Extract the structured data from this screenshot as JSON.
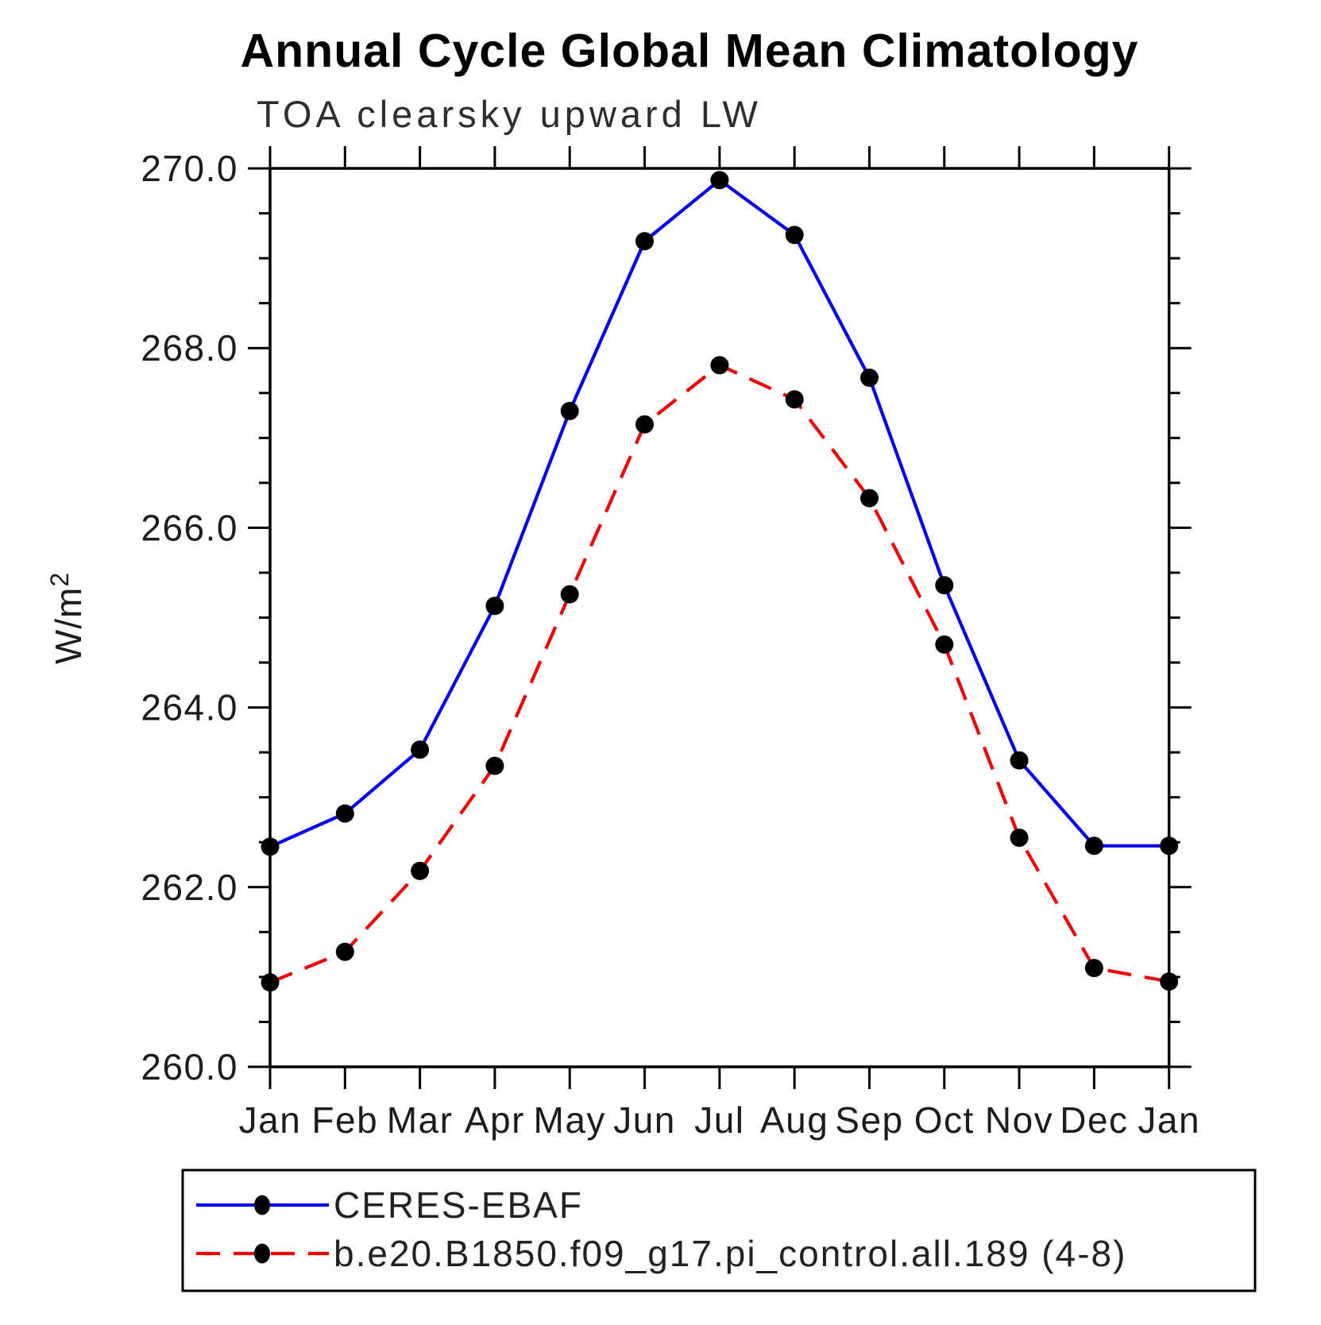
{
  "page": {
    "background": "#ffffff"
  },
  "chart_data": {
    "type": "line",
    "title": "Annual Cycle Global Mean Climatology",
    "subtitle": "TOA clearsky upward LW",
    "ylabel": "W/m²",
    "ylabel_base": "W/m",
    "ylabel_exp": "2",
    "categories": [
      "Jan",
      "Feb",
      "Mar",
      "Apr",
      "May",
      "Jun",
      "Jul",
      "Aug",
      "Sep",
      "Oct",
      "Nov",
      "Dec",
      "Jan"
    ],
    "ylim": [
      260.0,
      270.0
    ],
    "ytick_major_step": 2.0,
    "ytick_minor_step": 0.5,
    "ytick_labels": [
      "260.0",
      "262.0",
      "264.0",
      "266.0",
      "268.0",
      "270.0"
    ],
    "grid": false,
    "legend_position": "bottom-left-box",
    "axis_color": "#000000",
    "series": [
      {
        "name": "CERES-EBAF",
        "line_color": "#0000f2",
        "line_style": "solid",
        "marker": "filled-circle",
        "marker_color": "#000000",
        "values": [
          262.45,
          262.82,
          263.53,
          265.13,
          267.3,
          269.19,
          269.87,
          269.26,
          267.67,
          265.36,
          263.41,
          262.46,
          262.46
        ]
      },
      {
        "name": "b.e20.B1850.f09_g17.pi_control.all.189 (4-8)",
        "line_color": "#f20000",
        "line_style": "dashed",
        "marker": "filled-circle",
        "marker_color": "#000000",
        "values": [
          260.94,
          261.28,
          262.18,
          263.35,
          265.26,
          267.15,
          267.81,
          267.43,
          266.33,
          264.7,
          262.55,
          261.1,
          260.95
        ]
      }
    ]
  }
}
